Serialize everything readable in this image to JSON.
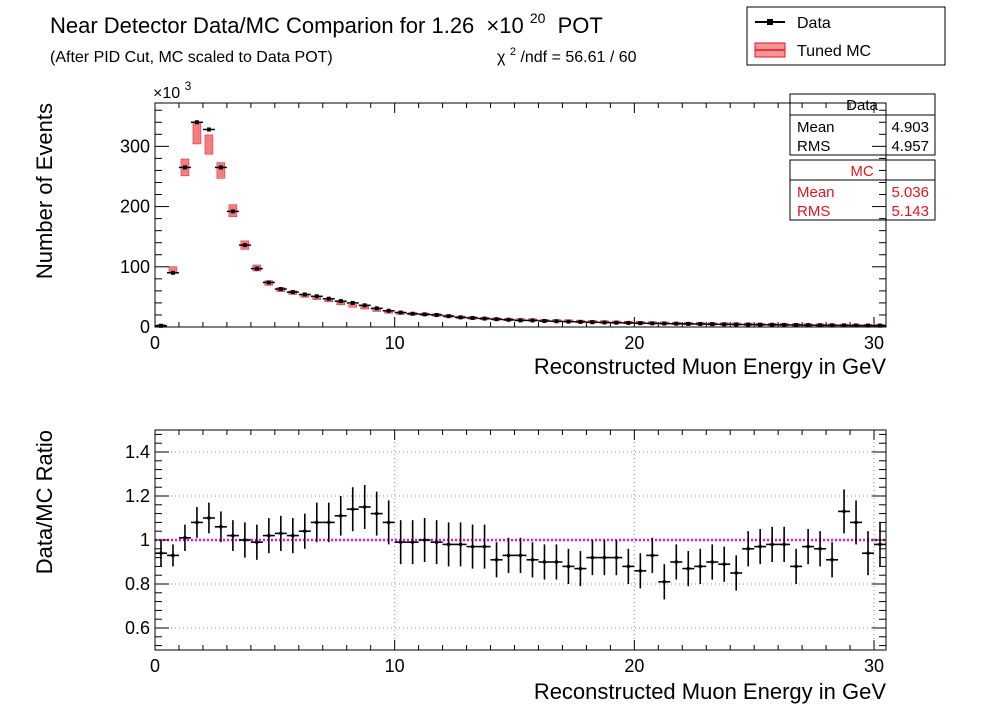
{
  "header": {
    "title": "Near Detector Data/MC Comparion for 1.26",
    "title_exp_base": "×10",
    "title_exp": "20",
    "title_unit": "POT",
    "subtitle": "(After PID Cut, MC scaled to Data POT)",
    "chi2_symbol": "χ",
    "chi2_exp": "2",
    "chi2_value": "/ndf = 56.61 / 60"
  },
  "legend": {
    "data_label": "Data",
    "mc_label": "Tuned MC"
  },
  "stats": {
    "data": {
      "title": "Data",
      "mean_label": "Mean",
      "mean": "4.903",
      "rms_label": "RMS",
      "rms": "4.957"
    },
    "mc": {
      "title": "MC",
      "mean_label": "Mean",
      "mean": "5.036",
      "rms_label": "RMS",
      "rms": "5.143"
    }
  },
  "colors": {
    "data": "#000000",
    "mc": "#e8141b",
    "ratio_line": "#ff00ff"
  },
  "chart_data": [
    {
      "type": "bar",
      "title": "Near Detector Data/MC Comparion for 1.26 ×10^20 POT",
      "xlabel": "Reconstructed Muon Energy in GeV",
      "ylabel": "Number of Events",
      "y_multiplier": "×10",
      "y_multiplier_exp": "3",
      "xlim": [
        0,
        30.5
      ],
      "ylim": [
        0,
        372
      ],
      "xticks": [
        "0",
        "10",
        "20",
        "30"
      ],
      "yticks": [
        "0",
        "100",
        "200",
        "300"
      ],
      "ytick_values": [
        0,
        100,
        200,
        300
      ],
      "bin_width": 0.5,
      "series": [
        {
          "name": "Data",
          "x": [
            0.25,
            0.75,
            1.25,
            1.75,
            2.25,
            2.75,
            3.25,
            3.75,
            4.25,
            4.75,
            5.25,
            5.75,
            6.25,
            6.75,
            7.25,
            7.75,
            8.25,
            8.75,
            9.25,
            9.75,
            10.25,
            10.75,
            11.25,
            11.75,
            12.25,
            12.75,
            13.25,
            13.75,
            14.25,
            14.75,
            15.25,
            15.75,
            16.25,
            16.75,
            17.25,
            17.75,
            18.25,
            18.75,
            19.25,
            19.75,
            20.25,
            20.75,
            21.25,
            21.75,
            22.25,
            22.75,
            23.25,
            23.75,
            24.25,
            24.75,
            25.25,
            25.75,
            26.25,
            26.75,
            27.25,
            27.75,
            28.25,
            28.75,
            29.25,
            29.75,
            30.25
          ],
          "values": [
            2,
            90,
            265,
            340,
            328,
            265,
            192,
            136,
            97,
            74,
            63,
            58,
            54,
            51,
            47,
            43,
            40,
            36,
            31,
            27,
            24,
            22,
            21,
            20,
            18,
            16,
            15,
            14,
            13,
            12,
            11,
            11,
            10,
            9.5,
            9,
            8.5,
            8,
            7.6,
            7.2,
            6.8,
            6.4,
            6.1,
            5.8,
            5.5,
            5.2,
            5,
            4.7,
            4.5,
            4.3,
            4.1,
            3.9,
            3.7,
            3.5,
            3.3,
            3.1,
            3,
            2.8,
            2.7,
            2.5,
            2.4,
            2.3
          ]
        },
        {
          "name": "Tuned MC",
          "x": [
            0.25,
            0.75,
            1.25,
            1.75,
            2.25,
            2.75,
            3.25,
            3.75,
            4.25,
            4.75,
            5.25,
            5.75,
            6.25,
            6.75,
            7.25,
            7.75,
            8.25,
            8.75,
            9.25,
            9.75,
            10.25,
            10.75,
            11.25,
            11.75,
            12.25,
            12.75,
            13.25,
            13.75,
            14.25,
            14.75,
            15.25,
            15.75,
            16.25,
            16.75,
            17.25,
            17.75,
            18.25,
            18.75,
            19.25,
            19.75,
            20.25,
            20.75,
            21.25,
            21.75,
            22.25,
            22.75,
            23.25,
            23.75,
            24.25,
            24.75,
            25.25,
            25.75,
            26.25,
            26.75,
            27.25,
            27.75,
            28.25,
            28.75,
            29.25,
            29.75,
            30.25
          ],
          "values": [
            2.1,
            95,
            265,
            322,
            303,
            260,
            193,
            136,
            98,
            73,
            62,
            57,
            52,
            48,
            44,
            39,
            35,
            32,
            28,
            25,
            23,
            22,
            21,
            20,
            18,
            16,
            15,
            14,
            13,
            12.5,
            12,
            11.5,
            10.7,
            10.3,
            9.8,
            9.3,
            8.8,
            8.3,
            7.9,
            7.5,
            7.1,
            6.7,
            6.3,
            6,
            5.7,
            5.5,
            5.2,
            4.9,
            4.7,
            4.4,
            4.2,
            4,
            3.8,
            3.6,
            3.4,
            3.2,
            3,
            2.8,
            2.6,
            2.5,
            2.4
          ],
          "err": [
            0.3,
            5,
            14,
            18,
            16,
            13,
            10,
            7,
            5,
            3.8,
            3.2,
            2.9,
            2.6,
            2.4,
            2.2,
            2,
            1.8,
            1.6,
            1.4,
            1.3,
            1.2,
            1.1,
            1.05,
            1,
            0.9,
            0.8,
            0.75,
            0.7,
            0.65,
            0.62,
            0.6,
            0.58,
            0.54,
            0.52,
            0.49,
            0.47,
            0.44,
            0.42,
            0.4,
            0.38,
            0.36,
            0.34,
            0.32,
            0.3,
            0.29,
            0.28,
            0.26,
            0.25,
            0.24,
            0.22,
            0.21,
            0.2,
            0.19,
            0.18,
            0.17,
            0.16,
            0.15,
            0.14,
            0.13,
            0.13,
            0.12
          ]
        }
      ]
    },
    {
      "type": "scatter",
      "xlabel": "Reconstructed Muon Energy in GeV",
      "ylabel": "Data/MC Ratio",
      "xlim": [
        0,
        30.5
      ],
      "ylim": [
        0.5,
        1.5
      ],
      "xticks": [
        "0",
        "10",
        "20",
        "30"
      ],
      "yticks": [
        "0.6",
        "0.8",
        "1",
        "1.2",
        "1.4"
      ],
      "ytick_values": [
        0.6,
        0.8,
        1.0,
        1.2,
        1.4
      ],
      "reference_line": 1.0,
      "series": [
        {
          "name": "Ratio",
          "x": [
            0.25,
            0.75,
            1.25,
            1.75,
            2.25,
            2.75,
            3.25,
            3.75,
            4.25,
            4.75,
            5.25,
            5.75,
            6.25,
            6.75,
            7.25,
            7.75,
            8.25,
            8.75,
            9.25,
            9.75,
            10.25,
            10.75,
            11.25,
            11.75,
            12.25,
            12.75,
            13.25,
            13.75,
            14.25,
            14.75,
            15.25,
            15.75,
            16.25,
            16.75,
            17.25,
            17.75,
            18.25,
            18.75,
            19.25,
            19.75,
            20.25,
            20.75,
            21.25,
            21.75,
            22.25,
            22.75,
            23.25,
            23.75,
            24.25,
            24.75,
            25.25,
            25.75,
            26.25,
            26.75,
            27.25,
            27.75,
            28.25,
            28.75,
            29.25,
            29.75,
            30.25
          ],
          "values": [
            0.94,
            0.93,
            1.01,
            1.08,
            1.1,
            1.06,
            1.02,
            1.0,
            0.99,
            1.02,
            1.03,
            1.02,
            1.04,
            1.08,
            1.08,
            1.11,
            1.14,
            1.15,
            1.12,
            1.08,
            0.99,
            0.99,
            1.0,
            0.99,
            0.98,
            0.98,
            0.97,
            0.97,
            0.91,
            0.93,
            0.93,
            0.91,
            0.9,
            0.9,
            0.88,
            0.87,
            0.92,
            0.92,
            0.92,
            0.88,
            0.86,
            0.93,
            0.81,
            0.9,
            0.87,
            0.88,
            0.9,
            0.89,
            0.85,
            0.96,
            0.97,
            0.98,
            0.98,
            0.88,
            0.97,
            0.96,
            0.91,
            1.13,
            1.08,
            0.94,
            0.98
          ],
          "err": [
            0.06,
            0.05,
            0.06,
            0.07,
            0.07,
            0.07,
            0.07,
            0.08,
            0.08,
            0.08,
            0.08,
            0.08,
            0.08,
            0.09,
            0.09,
            0.09,
            0.1,
            0.1,
            0.1,
            0.1,
            0.1,
            0.1,
            0.1,
            0.1,
            0.1,
            0.1,
            0.1,
            0.1,
            0.08,
            0.08,
            0.08,
            0.08,
            0.08,
            0.08,
            0.08,
            0.08,
            0.08,
            0.08,
            0.08,
            0.08,
            0.08,
            0.08,
            0.08,
            0.08,
            0.08,
            0.08,
            0.08,
            0.08,
            0.08,
            0.08,
            0.08,
            0.08,
            0.08,
            0.08,
            0.08,
            0.08,
            0.08,
            0.1,
            0.1,
            0.1,
            0.1
          ]
        }
      ]
    }
  ]
}
